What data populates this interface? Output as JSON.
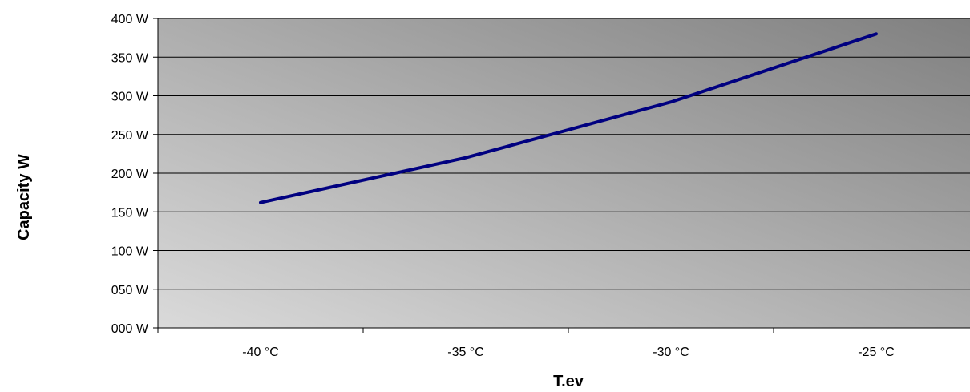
{
  "chart_data": {
    "type": "line",
    "xlabel": "T.ev",
    "ylabel": "Capacity W",
    "categories": [
      "-40 °C",
      "-35 °C",
      "-30 °C",
      "-25 °C"
    ],
    "y_tick_labels": [
      "000 W",
      "050 W",
      "100 W",
      "150 W",
      "200 W",
      "250 W",
      "300 W",
      "350 W",
      "400 W"
    ],
    "ylim": [
      0,
      400
    ],
    "y_tick_step": 50,
    "grid": "horizontal",
    "legend": "none",
    "series": [
      {
        "values": [
          162,
          220,
          292,
          380
        ],
        "color": "#000080"
      }
    ],
    "background_gradient": [
      "#dadada",
      "#808080"
    ]
  }
}
